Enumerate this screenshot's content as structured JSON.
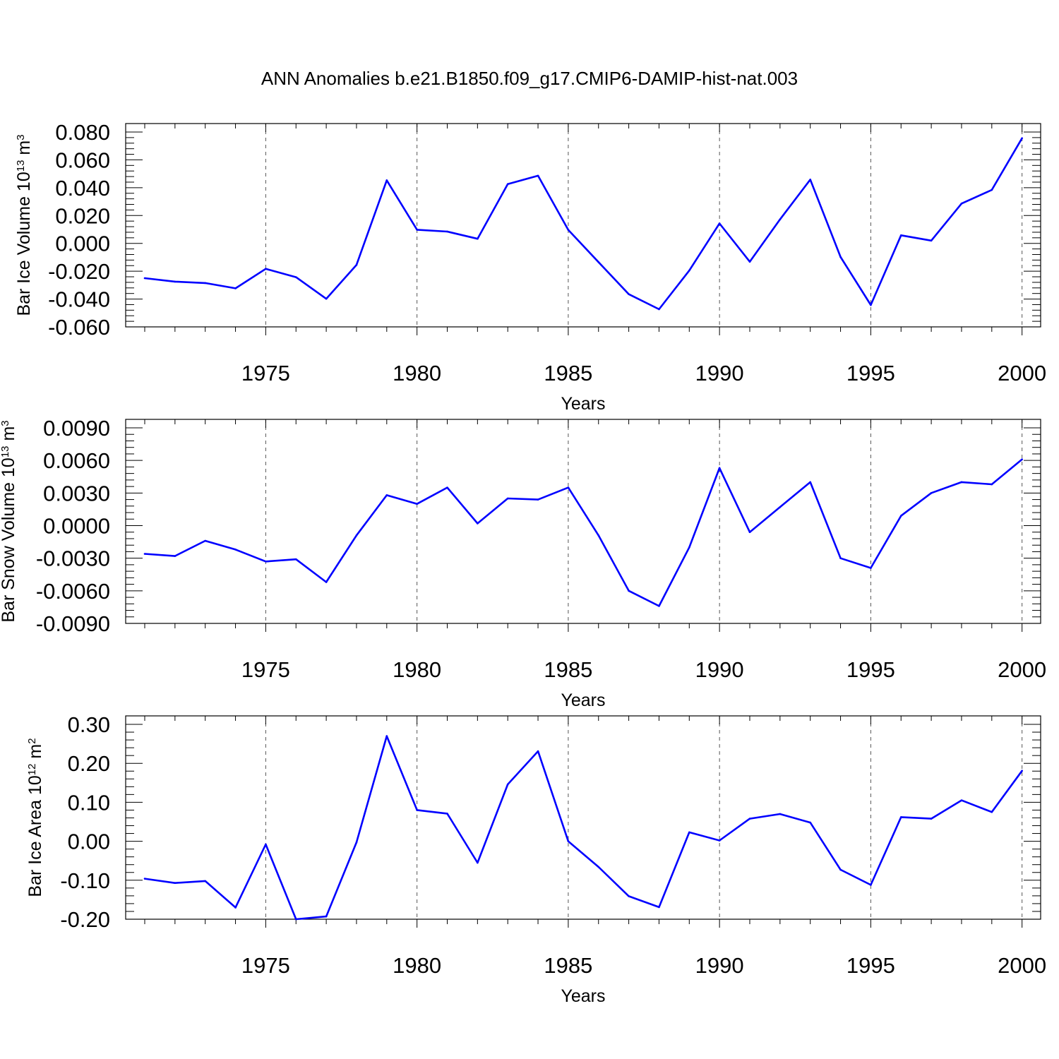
{
  "title": "ANN Anomalies b.e21.B1850.f09_g17.CMIP6-DAMIP-hist-nat.003",
  "chart_data": [
    {
      "type": "line",
      "title": "ANN Anomalies b.e21.B1850.f09_g17.CMIP6-DAMIP-hist-nat.003",
      "xlabel": "Years",
      "ylabel": {
        "prefix": "Bar Ice Volume 10",
        "exp": "13",
        "unit": " m",
        "unit_exp": "3"
      },
      "xlim": [
        1971,
        2000
      ],
      "ylim": [
        -0.06,
        0.08
      ],
      "x_ticks": [
        1975,
        1980,
        1985,
        1990,
        1995,
        2000
      ],
      "y_ticks": [
        -0.06,
        -0.04,
        -0.02,
        0.0,
        0.02,
        0.04,
        0.06,
        0.08
      ],
      "y_tick_labels": [
        "-0.060",
        "-0.040",
        "-0.020",
        "0.000",
        "0.020",
        "0.040",
        "0.060",
        "0.080"
      ],
      "grid": "dashed vertical at major x ticks",
      "color": "#0000ff",
      "x": [
        1971,
        1972,
        1973,
        1974,
        1975,
        1976,
        1977,
        1978,
        1979,
        1980,
        1981,
        1982,
        1983,
        1984,
        1985,
        1986,
        1987,
        1988,
        1989,
        1990,
        1991,
        1992,
        1993,
        1994,
        1995,
        1996,
        1997,
        1998,
        1999,
        2000
      ],
      "values": [
        -0.025,
        -0.0275,
        -0.0285,
        -0.0323,
        -0.0183,
        -0.0243,
        -0.0398,
        -0.0155,
        0.0453,
        0.0098,
        0.0085,
        0.0033,
        0.0426,
        0.0486,
        0.0097,
        -0.0135,
        -0.0365,
        -0.0473,
        -0.0195,
        0.0143,
        -0.0132,
        0.0172,
        0.0458,
        -0.0098,
        -0.0443,
        0.0058,
        0.002,
        0.0286,
        0.0384,
        0.0756
      ]
    },
    {
      "type": "line",
      "xlabel": "Years",
      "ylabel": {
        "prefix": "Bar Snow Volume 10",
        "exp": "13",
        "unit": " m",
        "unit_exp": "3"
      },
      "xlim": [
        1971,
        2000
      ],
      "ylim": [
        -0.009,
        0.009
      ],
      "x_ticks": [
        1975,
        1980,
        1985,
        1990,
        1995,
        2000
      ],
      "y_ticks": [
        -0.009,
        -0.006,
        -0.003,
        0.0,
        0.003,
        0.006,
        0.009
      ],
      "y_tick_labels": [
        "-0.0090",
        "-0.0060",
        "-0.0030",
        "0.0000",
        "0.0030",
        "0.0060",
        "0.0090"
      ],
      "grid": "dashed vertical at major x ticks",
      "color": "#0000ff",
      "x": [
        1971,
        1972,
        1973,
        1974,
        1975,
        1976,
        1977,
        1978,
        1979,
        1980,
        1981,
        1982,
        1983,
        1984,
        1985,
        1986,
        1987,
        1988,
        1989,
        1990,
        1991,
        1992,
        1993,
        1994,
        1995,
        1996,
        1997,
        1998,
        1999,
        2000
      ],
      "values": [
        -0.0026,
        -0.0028,
        -0.0014,
        -0.0022,
        -0.0033,
        -0.0031,
        -0.0052,
        -0.0009,
        0.0028,
        0.002,
        0.0035,
        0.0002,
        0.0025,
        0.0024,
        0.0035,
        -0.0009,
        -0.006,
        -0.0074,
        -0.002,
        0.0053,
        -0.0006,
        0.0017,
        0.004,
        -0.003,
        -0.0039,
        0.0009,
        0.003,
        0.004,
        0.0038,
        0.0061
      ]
    },
    {
      "type": "line",
      "xlabel": "Years",
      "ylabel": {
        "prefix": "Bar Ice Area 10",
        "exp": "12",
        "unit": " m",
        "unit_exp": "2"
      },
      "xlim": [
        1971,
        2000
      ],
      "ylim": [
        -0.2,
        0.3
      ],
      "x_ticks": [
        1975,
        1980,
        1985,
        1990,
        1995,
        2000
      ],
      "y_ticks": [
        -0.2,
        -0.1,
        0.0,
        0.1,
        0.2,
        0.3
      ],
      "y_tick_labels": [
        "-0.20",
        "-0.10",
        "0.00",
        "0.10",
        "0.20",
        "0.30"
      ],
      "grid": "dashed vertical at major x ticks",
      "color": "#0000ff",
      "x": [
        1971,
        1972,
        1973,
        1974,
        1975,
        1976,
        1977,
        1978,
        1979,
        1980,
        1981,
        1982,
        1983,
        1984,
        1985,
        1986,
        1987,
        1988,
        1989,
        1990,
        1991,
        1992,
        1993,
        1994,
        1995,
        1996,
        1997,
        1998,
        1999,
        2000
      ],
      "values": [
        -0.096,
        -0.107,
        -0.102,
        -0.17,
        -0.008,
        -0.2,
        -0.193,
        -0.003,
        0.27,
        0.08,
        0.071,
        -0.055,
        0.146,
        0.231,
        0.0,
        -0.066,
        -0.141,
        -0.169,
        0.023,
        0.002,
        0.058,
        0.07,
        0.048,
        -0.073,
        -0.112,
        0.062,
        0.058,
        0.105,
        0.075,
        0.181
      ]
    }
  ]
}
